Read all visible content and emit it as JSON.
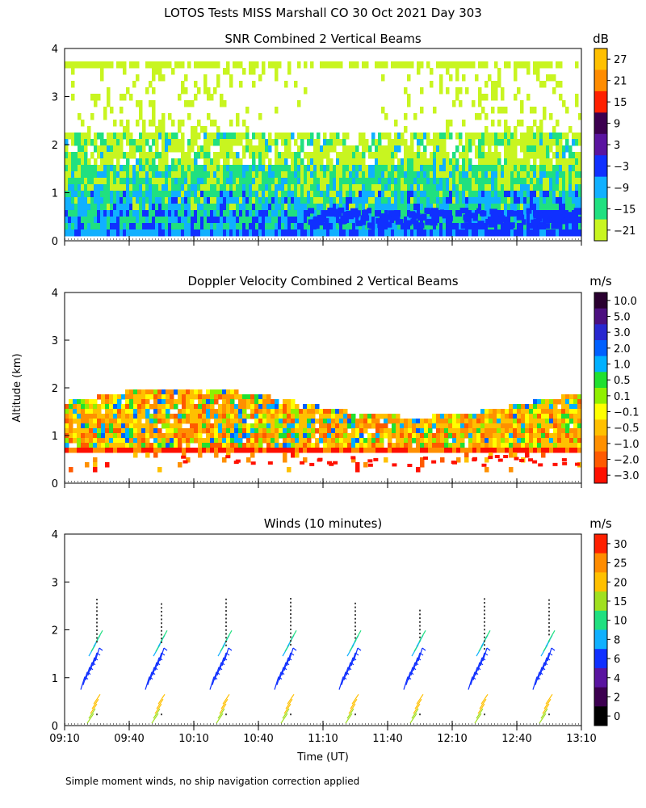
{
  "figure_title": "LOTOS Tests MISS Marshall CO  30 Oct 2021 Day 303",
  "y_axis_label": "Altitude (km)",
  "x_axis_label": "Time (UT)",
  "footnote": "Simple moment winds, no ship navigation correction applied",
  "x_ticks": [
    "09:10",
    "09:40",
    "10:10",
    "10:40",
    "11:10",
    "11:40",
    "12:10",
    "12:40",
    "13:10"
  ],
  "y_ticks": [
    "0",
    "1",
    "2",
    "3",
    "4"
  ],
  "chart_data": [
    {
      "type": "heatmap",
      "title": "SNR Combined 2 Vertical Beams",
      "xlabel": "Time (UT)",
      "ylabel": "Altitude (km)",
      "xlim": [
        "09:10",
        "13:10"
      ],
      "ylim": [
        0,
        4
      ],
      "colorbar": {
        "unit": "dB",
        "ticks": [
          "27",
          "21",
          "15",
          "9",
          "3",
          "−3",
          "−9",
          "−15",
          "−21"
        ],
        "colors": [
          "#ffc000",
          "#ff8c00",
          "#ff2000",
          "#3c0050",
          "#5a14a0",
          "#1030ff",
          "#10b0ff",
          "#20e080",
          "#c8f520"
        ]
      },
      "notes": "Return mostly -21 to -9 dB below ~2.5 km, strongest (-3 dB) near 0.3-0.6 km after 11:40; sparse -21 dB echoes up to 4 km."
    },
    {
      "type": "heatmap",
      "title": "Doppler Velocity Combined 2 Vertical Beams",
      "xlabel": "Time (UT)",
      "ylabel": "Altitude (km)",
      "xlim": [
        "09:10",
        "13:10"
      ],
      "ylim": [
        0,
        4
      ],
      "colorbar": {
        "unit": "m/s",
        "ticks": [
          "10.0",
          "5.0",
          "3.0",
          "2.0",
          "1.0",
          "0.5",
          "0.1",
          "−0.1",
          "−0.5",
          "−1.0",
          "−2.0",
          "−3.0"
        ],
        "colors": [
          "#2a0030",
          "#4c1080",
          "#2828d0",
          "#0060ff",
          "#00b0ff",
          "#20e030",
          "#90f000",
          "#ffff00",
          "#ffc000",
          "#ff9000",
          "#ff5a00",
          "#ff1000"
        ]
      },
      "notes": "Mostly -0.5 to -2.0 m/s between 0.7 and 1.8 km with scattered positive cells; noisy returns near 0.3-0.6 km."
    },
    {
      "type": "scatter",
      "title": "Winds (10 minutes)",
      "xlabel": "Time (UT)",
      "ylabel": "Altitude (km)",
      "xlim": [
        "09:10",
        "13:10"
      ],
      "ylim": [
        0,
        4
      ],
      "colorbar": {
        "unit": "m/s",
        "ticks": [
          "30",
          "25",
          "20",
          "15",
          "10",
          "8",
          "6",
          "4",
          "2",
          "0"
        ],
        "colors": [
          "#ff2000",
          "#ff8c00",
          "#ffc000",
          "#a0e020",
          "#20e080",
          "#10b0ff",
          "#1030ff",
          "#5a14a0",
          "#3c0050",
          "#000000"
        ]
      },
      "profile_times": [
        "09:25",
        "09:55",
        "10:25",
        "10:55",
        "11:25",
        "11:55",
        "12:25",
        "12:55"
      ],
      "notes": "Wind barbs per profile: 15-25 m/s below 0.5 km, 6-8 m/s between 0.8 and 1.4 km, 10-15 m/s near 1.5-2 km; missing data dots up to ~3 km."
    }
  ]
}
